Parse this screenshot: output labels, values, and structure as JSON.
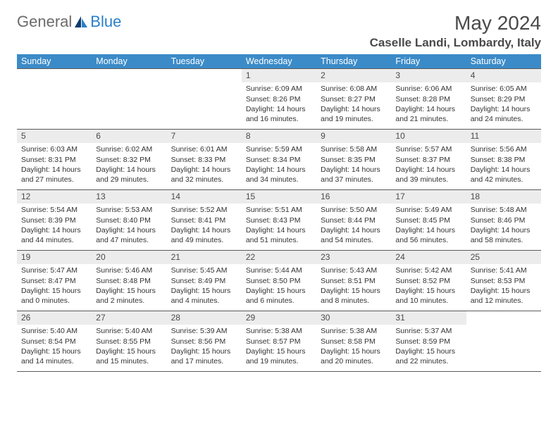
{
  "logo": {
    "general": "General",
    "blue": "Blue"
  },
  "title": "May 2024",
  "location": "Caselle Landi, Lombardy, Italy",
  "dayHeaders": [
    "Sunday",
    "Monday",
    "Tuesday",
    "Wednesday",
    "Thursday",
    "Friday",
    "Saturday"
  ],
  "colors": {
    "headerBg": "#3b8bc8",
    "headerText": "#ffffff",
    "dayNumBg": "#ececec",
    "bodyText": "#333333",
    "titleText": "#4a4a4a",
    "locationText": "#4a4a4a",
    "borderColor": "#5b5b5b",
    "logoGray": "#6b6b6b",
    "logoBlue": "#2a7fc9"
  },
  "weeks": [
    [
      null,
      null,
      null,
      {
        "n": "1",
        "sr": "Sunrise: 6:09 AM",
        "ss": "Sunset: 8:26 PM",
        "d1": "Daylight: 14 hours",
        "d2": "and 16 minutes."
      },
      {
        "n": "2",
        "sr": "Sunrise: 6:08 AM",
        "ss": "Sunset: 8:27 PM",
        "d1": "Daylight: 14 hours",
        "d2": "and 19 minutes."
      },
      {
        "n": "3",
        "sr": "Sunrise: 6:06 AM",
        "ss": "Sunset: 8:28 PM",
        "d1": "Daylight: 14 hours",
        "d2": "and 21 minutes."
      },
      {
        "n": "4",
        "sr": "Sunrise: 6:05 AM",
        "ss": "Sunset: 8:29 PM",
        "d1": "Daylight: 14 hours",
        "d2": "and 24 minutes."
      }
    ],
    [
      {
        "n": "5",
        "sr": "Sunrise: 6:03 AM",
        "ss": "Sunset: 8:31 PM",
        "d1": "Daylight: 14 hours",
        "d2": "and 27 minutes."
      },
      {
        "n": "6",
        "sr": "Sunrise: 6:02 AM",
        "ss": "Sunset: 8:32 PM",
        "d1": "Daylight: 14 hours",
        "d2": "and 29 minutes."
      },
      {
        "n": "7",
        "sr": "Sunrise: 6:01 AM",
        "ss": "Sunset: 8:33 PM",
        "d1": "Daylight: 14 hours",
        "d2": "and 32 minutes."
      },
      {
        "n": "8",
        "sr": "Sunrise: 5:59 AM",
        "ss": "Sunset: 8:34 PM",
        "d1": "Daylight: 14 hours",
        "d2": "and 34 minutes."
      },
      {
        "n": "9",
        "sr": "Sunrise: 5:58 AM",
        "ss": "Sunset: 8:35 PM",
        "d1": "Daylight: 14 hours",
        "d2": "and 37 minutes."
      },
      {
        "n": "10",
        "sr": "Sunrise: 5:57 AM",
        "ss": "Sunset: 8:37 PM",
        "d1": "Daylight: 14 hours",
        "d2": "and 39 minutes."
      },
      {
        "n": "11",
        "sr": "Sunrise: 5:56 AM",
        "ss": "Sunset: 8:38 PM",
        "d1": "Daylight: 14 hours",
        "d2": "and 42 minutes."
      }
    ],
    [
      {
        "n": "12",
        "sr": "Sunrise: 5:54 AM",
        "ss": "Sunset: 8:39 PM",
        "d1": "Daylight: 14 hours",
        "d2": "and 44 minutes."
      },
      {
        "n": "13",
        "sr": "Sunrise: 5:53 AM",
        "ss": "Sunset: 8:40 PM",
        "d1": "Daylight: 14 hours",
        "d2": "and 47 minutes."
      },
      {
        "n": "14",
        "sr": "Sunrise: 5:52 AM",
        "ss": "Sunset: 8:41 PM",
        "d1": "Daylight: 14 hours",
        "d2": "and 49 minutes."
      },
      {
        "n": "15",
        "sr": "Sunrise: 5:51 AM",
        "ss": "Sunset: 8:43 PM",
        "d1": "Daylight: 14 hours",
        "d2": "and 51 minutes."
      },
      {
        "n": "16",
        "sr": "Sunrise: 5:50 AM",
        "ss": "Sunset: 8:44 PM",
        "d1": "Daylight: 14 hours",
        "d2": "and 54 minutes."
      },
      {
        "n": "17",
        "sr": "Sunrise: 5:49 AM",
        "ss": "Sunset: 8:45 PM",
        "d1": "Daylight: 14 hours",
        "d2": "and 56 minutes."
      },
      {
        "n": "18",
        "sr": "Sunrise: 5:48 AM",
        "ss": "Sunset: 8:46 PM",
        "d1": "Daylight: 14 hours",
        "d2": "and 58 minutes."
      }
    ],
    [
      {
        "n": "19",
        "sr": "Sunrise: 5:47 AM",
        "ss": "Sunset: 8:47 PM",
        "d1": "Daylight: 15 hours",
        "d2": "and 0 minutes."
      },
      {
        "n": "20",
        "sr": "Sunrise: 5:46 AM",
        "ss": "Sunset: 8:48 PM",
        "d1": "Daylight: 15 hours",
        "d2": "and 2 minutes."
      },
      {
        "n": "21",
        "sr": "Sunrise: 5:45 AM",
        "ss": "Sunset: 8:49 PM",
        "d1": "Daylight: 15 hours",
        "d2": "and 4 minutes."
      },
      {
        "n": "22",
        "sr": "Sunrise: 5:44 AM",
        "ss": "Sunset: 8:50 PM",
        "d1": "Daylight: 15 hours",
        "d2": "and 6 minutes."
      },
      {
        "n": "23",
        "sr": "Sunrise: 5:43 AM",
        "ss": "Sunset: 8:51 PM",
        "d1": "Daylight: 15 hours",
        "d2": "and 8 minutes."
      },
      {
        "n": "24",
        "sr": "Sunrise: 5:42 AM",
        "ss": "Sunset: 8:52 PM",
        "d1": "Daylight: 15 hours",
        "d2": "and 10 minutes."
      },
      {
        "n": "25",
        "sr": "Sunrise: 5:41 AM",
        "ss": "Sunset: 8:53 PM",
        "d1": "Daylight: 15 hours",
        "d2": "and 12 minutes."
      }
    ],
    [
      {
        "n": "26",
        "sr": "Sunrise: 5:40 AM",
        "ss": "Sunset: 8:54 PM",
        "d1": "Daylight: 15 hours",
        "d2": "and 14 minutes."
      },
      {
        "n": "27",
        "sr": "Sunrise: 5:40 AM",
        "ss": "Sunset: 8:55 PM",
        "d1": "Daylight: 15 hours",
        "d2": "and 15 minutes."
      },
      {
        "n": "28",
        "sr": "Sunrise: 5:39 AM",
        "ss": "Sunset: 8:56 PM",
        "d1": "Daylight: 15 hours",
        "d2": "and 17 minutes."
      },
      {
        "n": "29",
        "sr": "Sunrise: 5:38 AM",
        "ss": "Sunset: 8:57 PM",
        "d1": "Daylight: 15 hours",
        "d2": "and 19 minutes."
      },
      {
        "n": "30",
        "sr": "Sunrise: 5:38 AM",
        "ss": "Sunset: 8:58 PM",
        "d1": "Daylight: 15 hours",
        "d2": "and 20 minutes."
      },
      {
        "n": "31",
        "sr": "Sunrise: 5:37 AM",
        "ss": "Sunset: 8:59 PM",
        "d1": "Daylight: 15 hours",
        "d2": "and 22 minutes."
      },
      null
    ]
  ]
}
